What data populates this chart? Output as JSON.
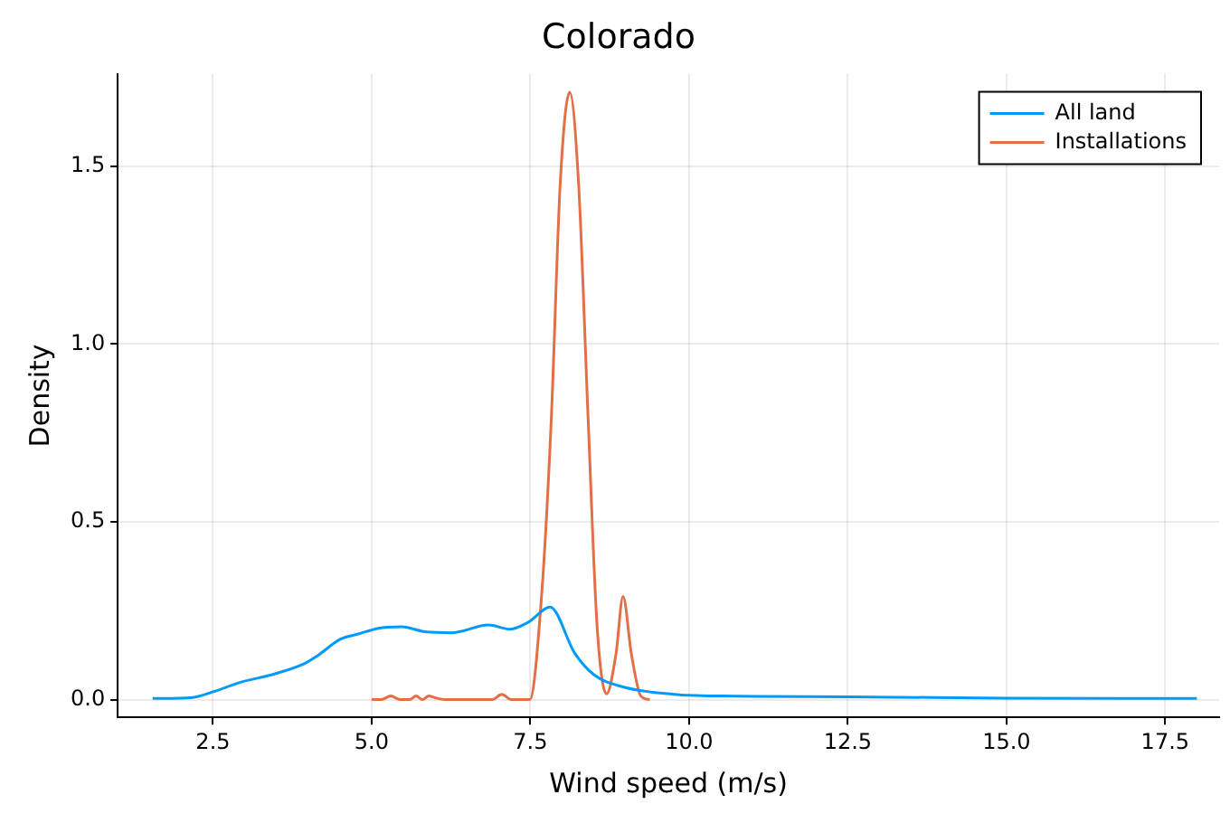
{
  "chart_data": {
    "type": "line",
    "title": "Colorado",
    "xlabel": "Wind speed (m/s)",
    "ylabel": "Density",
    "xlim": [
      1.0,
      18.35
    ],
    "ylim": [
      -0.05,
      1.76
    ],
    "xticks": [
      2.5,
      {
        "value": 5,
        "label": "5.0"
      },
      7.5,
      {
        "value": 10,
        "label": "10.0"
      },
      12.5,
      {
        "value": 15,
        "label": "15.0"
      },
      17.5
    ],
    "yticks": [
      {
        "value": 0,
        "label": "0.0"
      },
      0.5,
      {
        "value": 1,
        "label": "1.0"
      },
      1.5
    ],
    "grid": true,
    "legend": "top right",
    "marker": "none",
    "line_style": "solid",
    "series": [
      {
        "name": "All land",
        "color": "#009af9",
        "x": [
          1.55,
          2.18,
          2.47,
          2.96,
          3.43,
          3.93,
          4.12,
          4.51,
          4.8,
          5.09,
          5.47,
          5.87,
          6.26,
          6.84,
          7.18,
          7.47,
          7.81,
          8.2,
          8.5,
          8.97,
          9.76,
          10.5,
          12.5,
          15.0,
          18.0
        ],
        "values": [
          0.003,
          0.006,
          0.02,
          0.05,
          0.07,
          0.1,
          0.12,
          0.17,
          0.185,
          0.2,
          0.205,
          0.19,
          0.188,
          0.21,
          0.198,
          0.218,
          0.26,
          0.13,
          0.07,
          0.035,
          0.015,
          0.01,
          0.008,
          0.004,
          0.003
        ]
      },
      {
        "name": "Installations",
        "color": "#e26f46",
        "x": [
          5.0,
          5.15,
          5.3,
          5.45,
          5.6,
          5.7,
          5.8,
          5.9,
          6.0,
          6.15,
          6.9,
          7.05,
          7.2,
          7.49,
          7.68,
          7.83,
          7.97,
          8.12,
          8.26,
          8.41,
          8.55,
          8.7,
          8.85,
          8.96,
          9.09,
          9.24,
          9.38
        ],
        "values": [
          0,
          0,
          0.01,
          0,
          0,
          0.01,
          0,
          0.01,
          0.005,
          0,
          0,
          0.015,
          0,
          0,
          0.3,
          0.79,
          1.45,
          1.708,
          1.45,
          0.79,
          0.21,
          0.016,
          0.13,
          0.29,
          0.13,
          0.01,
          0
        ]
      }
    ]
  }
}
